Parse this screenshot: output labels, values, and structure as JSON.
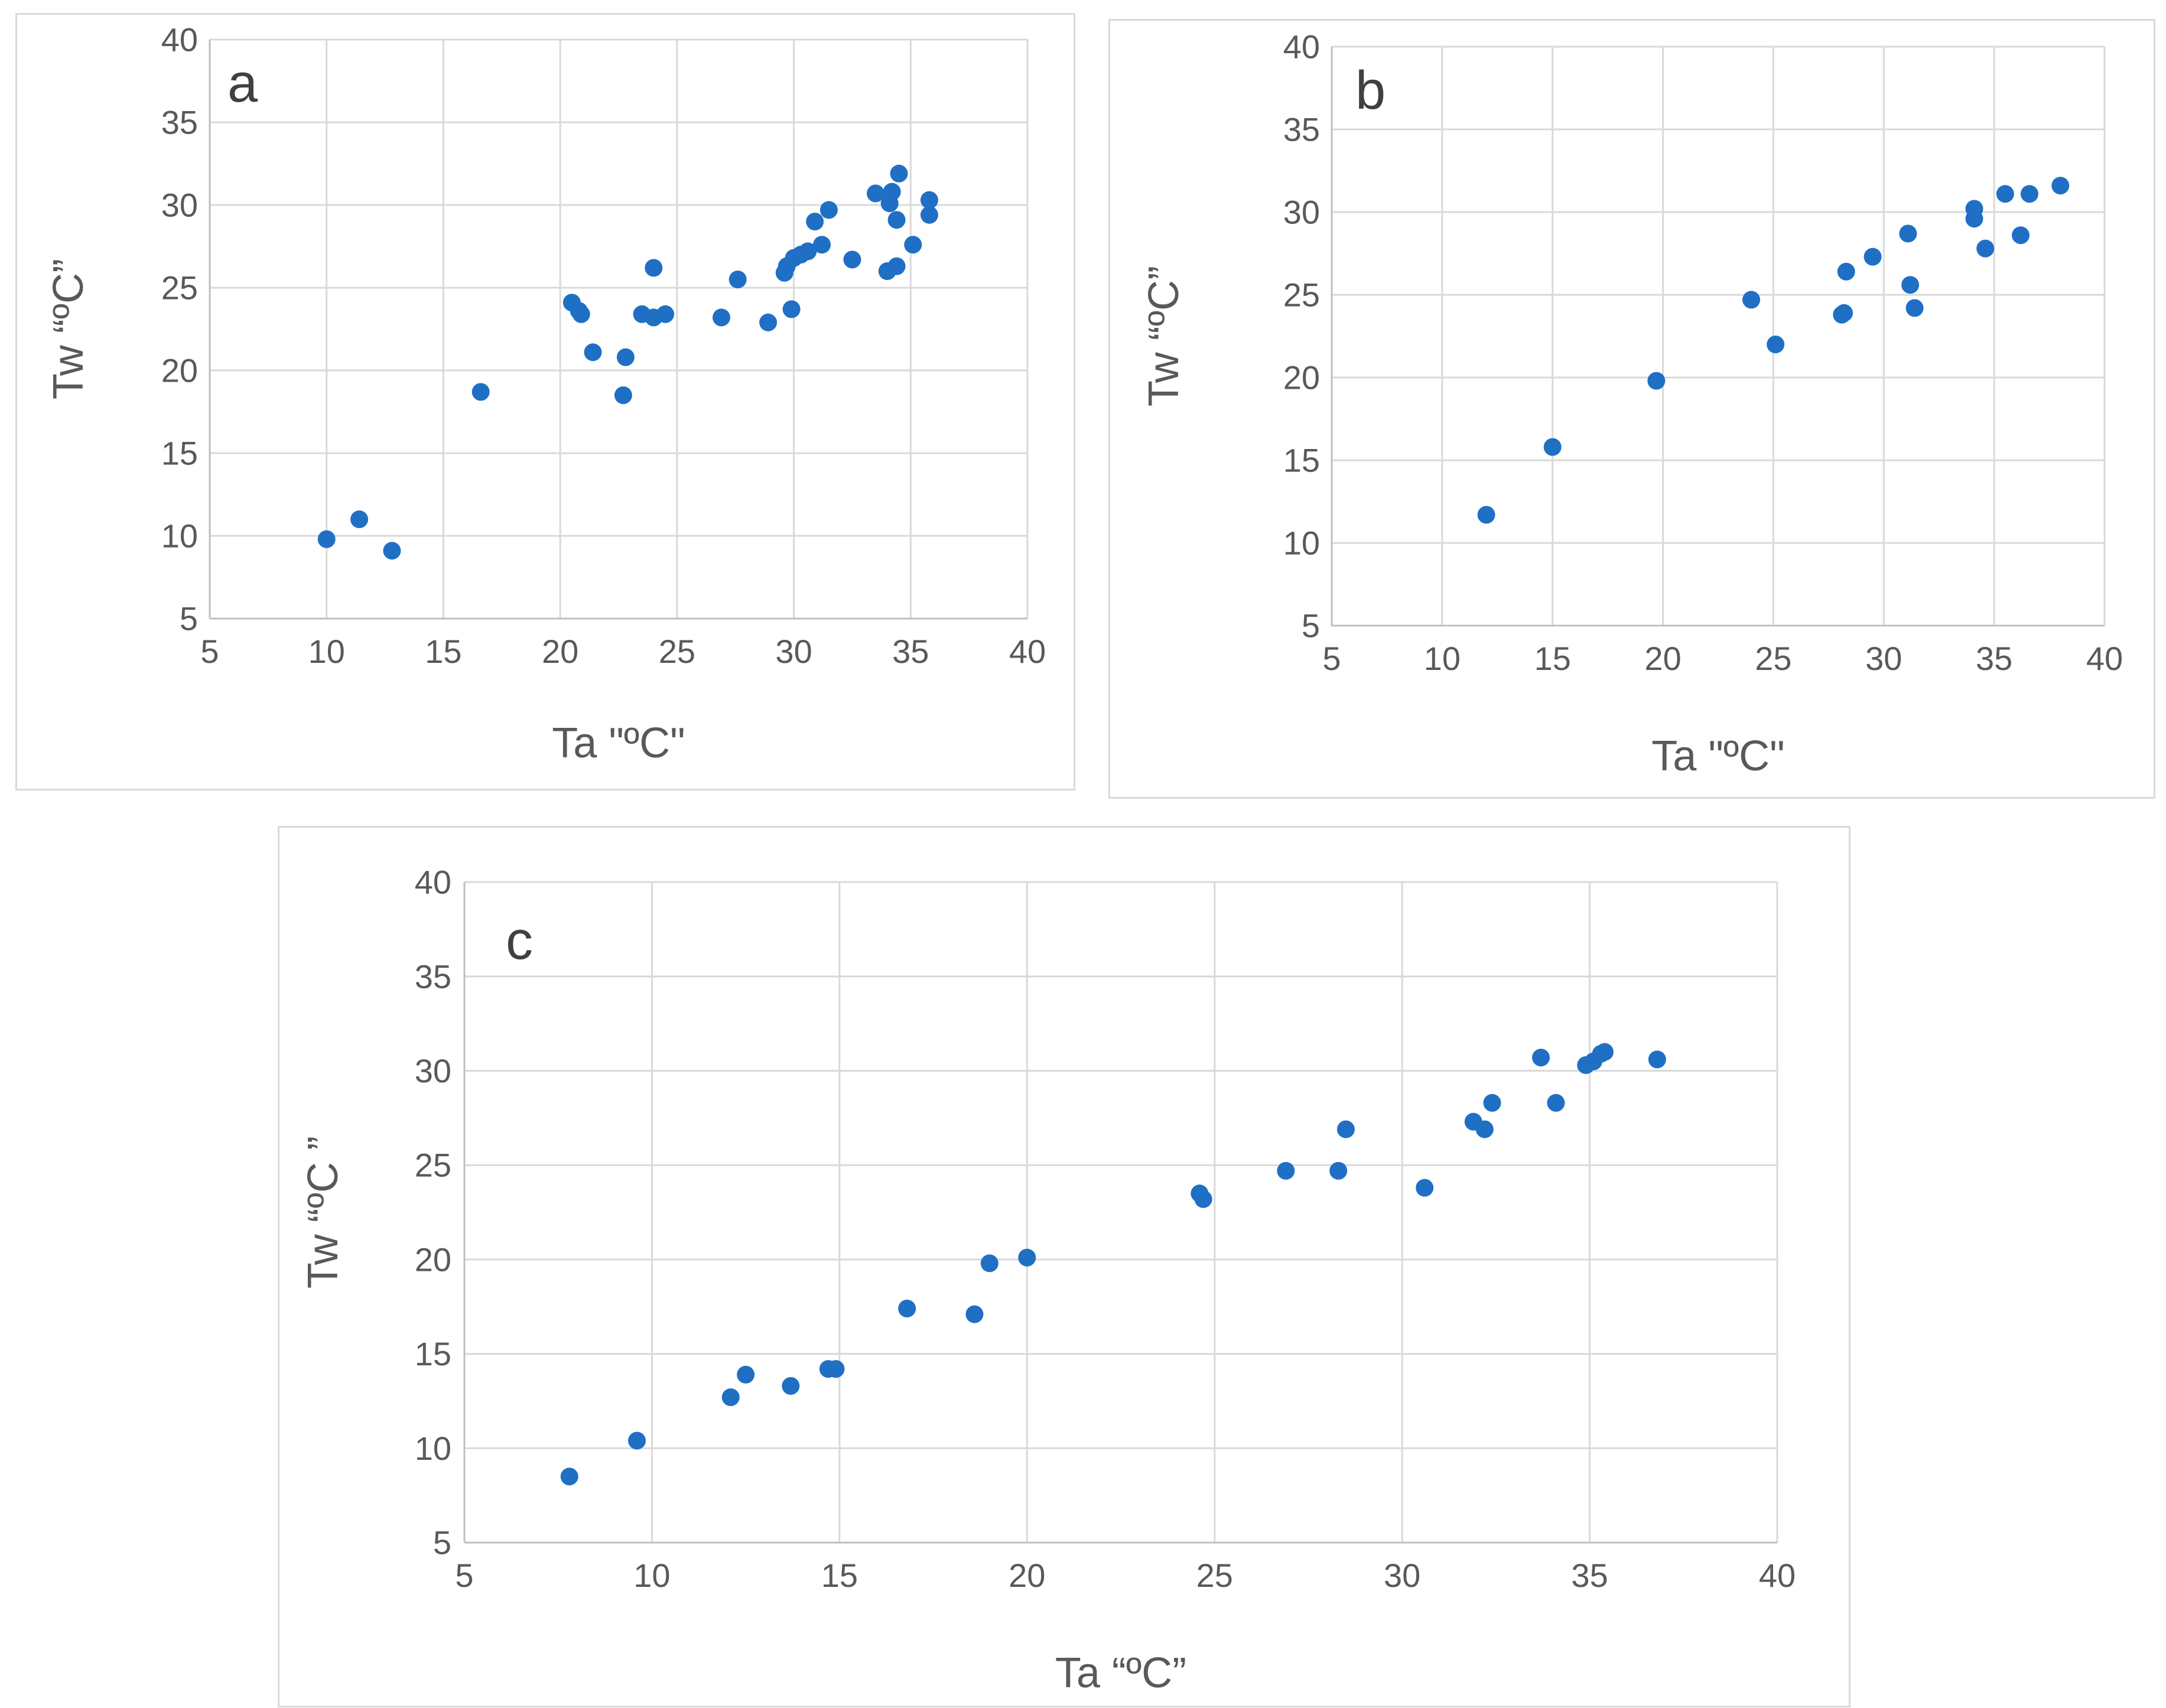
{
  "chart_data": [
    {
      "type": "scatter",
      "panel_label": "a",
      "xlabel": "Ta \"ºC\"",
      "ylabel": "Tw “ºC”",
      "xlim": [
        5,
        40
      ],
      "ylim": [
        5,
        40
      ],
      "xticks": [
        5,
        10,
        15,
        20,
        25,
        30,
        35,
        40
      ],
      "yticks": [
        5,
        10,
        15,
        20,
        25,
        30,
        35,
        40
      ],
      "grid": true,
      "marker_color": "#1f6fc5",
      "points": [
        {
          "x": 10.0,
          "y": 9.8
        },
        {
          "x": 11.4,
          "y": 11.0
        },
        {
          "x": 12.8,
          "y": 9.1
        },
        {
          "x": 16.6,
          "y": 18.7
        },
        {
          "x": 20.5,
          "y": 24.1
        },
        {
          "x": 20.8,
          "y": 23.6
        },
        {
          "x": 20.9,
          "y": 23.4
        },
        {
          "x": 21.4,
          "y": 21.1
        },
        {
          "x": 22.7,
          "y": 18.5
        },
        {
          "x": 22.8,
          "y": 20.8
        },
        {
          "x": 23.5,
          "y": 23.4
        },
        {
          "x": 24.0,
          "y": 23.2
        },
        {
          "x": 24.0,
          "y": 26.2
        },
        {
          "x": 24.5,
          "y": 23.4
        },
        {
          "x": 26.9,
          "y": 23.2
        },
        {
          "x": 27.6,
          "y": 25.5
        },
        {
          "x": 28.9,
          "y": 22.9
        },
        {
          "x": 29.6,
          "y": 25.9
        },
        {
          "x": 29.7,
          "y": 26.3
        },
        {
          "x": 29.9,
          "y": 23.7
        },
        {
          "x": 30.0,
          "y": 26.8
        },
        {
          "x": 30.3,
          "y": 27.0
        },
        {
          "x": 30.6,
          "y": 27.2
        },
        {
          "x": 30.9,
          "y": 29.0
        },
        {
          "x": 31.2,
          "y": 27.6
        },
        {
          "x": 31.5,
          "y": 29.7
        },
        {
          "x": 32.5,
          "y": 26.7
        },
        {
          "x": 33.5,
          "y": 30.7
        },
        {
          "x": 34.0,
          "y": 26.0
        },
        {
          "x": 34.1,
          "y": 30.1
        },
        {
          "x": 34.2,
          "y": 30.8
        },
        {
          "x": 34.4,
          "y": 29.1
        },
        {
          "x": 34.4,
          "y": 26.3
        },
        {
          "x": 34.5,
          "y": 31.9
        },
        {
          "x": 35.1,
          "y": 27.6
        },
        {
          "x": 35.8,
          "y": 29.4
        },
        {
          "x": 35.8,
          "y": 30.3
        }
      ]
    },
    {
      "type": "scatter",
      "panel_label": "b",
      "xlabel": "Ta \"ºC\"",
      "ylabel": "Tw “ºC”",
      "xlim": [
        5,
        40
      ],
      "ylim": [
        5,
        40
      ],
      "xticks": [
        5,
        10,
        15,
        20,
        25,
        30,
        35,
        40
      ],
      "yticks": [
        5,
        10,
        15,
        20,
        25,
        30,
        35,
        40
      ],
      "grid": true,
      "marker_color": "#1f6fc5",
      "points": [
        {
          "x": 12.0,
          "y": 11.7
        },
        {
          "x": 15.0,
          "y": 15.8
        },
        {
          "x": 19.7,
          "y": 19.8
        },
        {
          "x": 24.0,
          "y": 24.7
        },
        {
          "x": 25.1,
          "y": 22.0
        },
        {
          "x": 28.1,
          "y": 23.8
        },
        {
          "x": 28.2,
          "y": 23.9
        },
        {
          "x": 28.3,
          "y": 26.4
        },
        {
          "x": 29.5,
          "y": 27.3
        },
        {
          "x": 31.1,
          "y": 28.7
        },
        {
          "x": 31.2,
          "y": 25.6
        },
        {
          "x": 31.4,
          "y": 24.2
        },
        {
          "x": 34.1,
          "y": 29.6
        },
        {
          "x": 34.1,
          "y": 30.2
        },
        {
          "x": 34.6,
          "y": 27.8
        },
        {
          "x": 35.5,
          "y": 31.1
        },
        {
          "x": 36.2,
          "y": 28.6
        },
        {
          "x": 36.6,
          "y": 31.1
        },
        {
          "x": 38.0,
          "y": 31.6
        }
      ]
    },
    {
      "type": "scatter",
      "panel_label": "c",
      "xlabel": "Ta “ºC”",
      "ylabel": "Tw “ºC ”",
      "xlim": [
        5,
        40
      ],
      "ylim": [
        5,
        40
      ],
      "xticks": [
        5,
        10,
        15,
        20,
        25,
        30,
        35,
        40
      ],
      "yticks": [
        5,
        10,
        15,
        20,
        25,
        30,
        35,
        40
      ],
      "grid": true,
      "marker_color": "#1f6fc5",
      "points": [
        {
          "x": 7.8,
          "y": 8.5
        },
        {
          "x": 9.6,
          "y": 10.4
        },
        {
          "x": 12.1,
          "y": 12.7
        },
        {
          "x": 12.5,
          "y": 13.9
        },
        {
          "x": 13.7,
          "y": 13.3
        },
        {
          "x": 14.7,
          "y": 14.2
        },
        {
          "x": 14.9,
          "y": 14.2
        },
        {
          "x": 16.8,
          "y": 17.4
        },
        {
          "x": 18.6,
          "y": 17.1
        },
        {
          "x": 19.0,
          "y": 19.8
        },
        {
          "x": 20.0,
          "y": 20.1
        },
        {
          "x": 24.6,
          "y": 23.5
        },
        {
          "x": 24.7,
          "y": 23.2
        },
        {
          "x": 26.9,
          "y": 24.7
        },
        {
          "x": 28.3,
          "y": 24.7
        },
        {
          "x": 28.5,
          "y": 26.9
        },
        {
          "x": 30.6,
          "y": 23.8
        },
        {
          "x": 31.9,
          "y": 27.3
        },
        {
          "x": 32.2,
          "y": 26.9
        },
        {
          "x": 32.4,
          "y": 28.3
        },
        {
          "x": 33.7,
          "y": 30.7
        },
        {
          "x": 34.1,
          "y": 28.3
        },
        {
          "x": 34.9,
          "y": 30.3
        },
        {
          "x": 35.1,
          "y": 30.5
        },
        {
          "x": 35.3,
          "y": 30.9
        },
        {
          "x": 35.4,
          "y": 31.0
        },
        {
          "x": 36.8,
          "y": 30.6
        }
      ]
    }
  ]
}
